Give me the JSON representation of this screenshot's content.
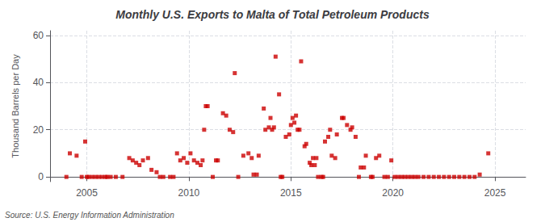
{
  "chart_data": {
    "type": "scatter",
    "title": "Monthly U.S. Exports to Malta of Total Petroleum Products",
    "ylabel": "Thousand Barrels per Day",
    "annotation": "Source: U.S. Energy Information Administration",
    "color": "#cc0000",
    "marker": "square",
    "grid": true,
    "xlim": [
      2003.2,
      2026.5
    ],
    "ylim": [
      -2,
      62
    ],
    "xticks": [
      2005,
      2010,
      2015,
      2020,
      2025
    ],
    "yticks": [
      0,
      20,
      40,
      60
    ],
    "x": [
      2004.0,
      2004.17,
      2004.5,
      2004.75,
      2004.92,
      2005.0,
      2005.08,
      2005.25,
      2005.42,
      2005.58,
      2005.75,
      2005.92,
      2006.0,
      2006.17,
      2006.42,
      2006.75,
      2007.08,
      2007.25,
      2007.42,
      2007.58,
      2007.75,
      2008.0,
      2008.17,
      2008.42,
      2008.58,
      2008.75,
      2009.08,
      2009.25,
      2009.42,
      2009.58,
      2009.75,
      2009.92,
      2010.08,
      2010.25,
      2010.42,
      2010.58,
      2010.67,
      2010.75,
      2010.83,
      2010.92,
      2011.17,
      2011.33,
      2011.42,
      2011.67,
      2011.83,
      2012.0,
      2012.17,
      2012.25,
      2012.42,
      2012.67,
      2012.92,
      2013.08,
      2013.17,
      2013.33,
      2013.42,
      2013.67,
      2013.75,
      2013.92,
      2014.0,
      2014.08,
      2014.17,
      2014.25,
      2014.42,
      2014.5,
      2014.58,
      2014.75,
      2014.92,
      2015.0,
      2015.08,
      2015.17,
      2015.25,
      2015.33,
      2015.42,
      2015.5,
      2015.67,
      2015.75,
      2015.92,
      2016.0,
      2016.08,
      2016.17,
      2016.25,
      2016.33,
      2016.5,
      2016.58,
      2016.67,
      2016.83,
      2016.92,
      2017.0,
      2017.17,
      2017.25,
      2017.5,
      2017.58,
      2017.75,
      2017.92,
      2018.0,
      2018.17,
      2018.33,
      2018.42,
      2018.58,
      2018.67,
      2018.92,
      2019.0,
      2019.17,
      2019.33,
      2019.58,
      2019.75,
      2019.92,
      2020.08,
      2020.25,
      2020.42,
      2020.58,
      2020.75,
      2020.92,
      2021.08,
      2021.25,
      2021.5,
      2021.75,
      2022.0,
      2022.25,
      2022.5,
      2022.75,
      2023.0,
      2023.25,
      2023.5,
      2023.75,
      2024.0,
      2024.25,
      2024.67
    ],
    "values": [
      0,
      10,
      9,
      0,
      15,
      0,
      0,
      0,
      0,
      0,
      0,
      0,
      0,
      0,
      0,
      0,
      8,
      7,
      6,
      5,
      7,
      8,
      3,
      2,
      0,
      0,
      0,
      0,
      10,
      7,
      8,
      6,
      10,
      7,
      6,
      5,
      7,
      20,
      30,
      30,
      0,
      7,
      7,
      27,
      26,
      20,
      19,
      44,
      0,
      9,
      10,
      8,
      1,
      1,
      9,
      29,
      20,
      21,
      25,
      20,
      21,
      51,
      35,
      0,
      0,
      17,
      18,
      22,
      25,
      23,
      26,
      20,
      20,
      49,
      13,
      14,
      6,
      5,
      8,
      5,
      8,
      0,
      0,
      0,
      15,
      17,
      20,
      9,
      8,
      18,
      25,
      25,
      22,
      20,
      21,
      17,
      0,
      4,
      4,
      9,
      0,
      0,
      8,
      9,
      0,
      0,
      7,
      0,
      0,
      0,
      0,
      0,
      0,
      0,
      0,
      0,
      0,
      0,
      0,
      0,
      0,
      0,
      0,
      0,
      0,
      0,
      1,
      10
    ]
  }
}
